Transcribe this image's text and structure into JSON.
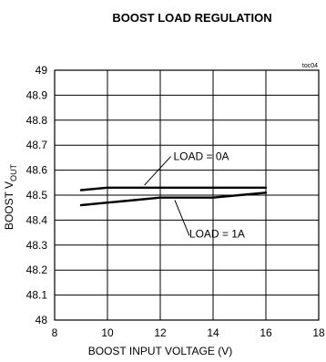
{
  "chart_data": {
    "type": "line",
    "title": "BOOST LOAD REGULATION",
    "tag": "toc04",
    "xlabel": "BOOST INPUT VOLTAGE (V)",
    "ylabel_main": "BOOST V",
    "ylabel_sub": "OUT",
    "xlim": [
      8,
      18
    ],
    "ylim": [
      48,
      49
    ],
    "xticks": [
      8,
      10,
      12,
      14,
      16,
      18
    ],
    "xtick_labels": [
      "8",
      "10",
      "12",
      "14",
      "16",
      "18"
    ],
    "yticks": [
      48,
      48.1,
      48.2,
      48.3,
      48.4,
      48.5,
      48.6,
      48.7,
      48.8,
      48.9,
      49
    ],
    "ytick_labels": [
      "48",
      "48.1",
      "48.2",
      "48.3",
      "48.4",
      "48.5",
      "48.6",
      "48.7",
      "48.8",
      "48.9",
      "49"
    ],
    "grid": true,
    "series": [
      {
        "name": "LOAD = 0A",
        "x": [
          9,
          10,
          11,
          12,
          13,
          14,
          15,
          16
        ],
        "y": [
          48.52,
          48.53,
          48.53,
          48.53,
          48.53,
          48.53,
          48.53,
          48.53
        ]
      },
      {
        "name": "LOAD = 1A",
        "x": [
          9,
          10,
          11,
          12,
          13,
          14,
          15,
          16
        ],
        "y": [
          48.46,
          48.47,
          48.48,
          48.49,
          48.49,
          48.49,
          48.5,
          48.51
        ]
      }
    ]
  }
}
